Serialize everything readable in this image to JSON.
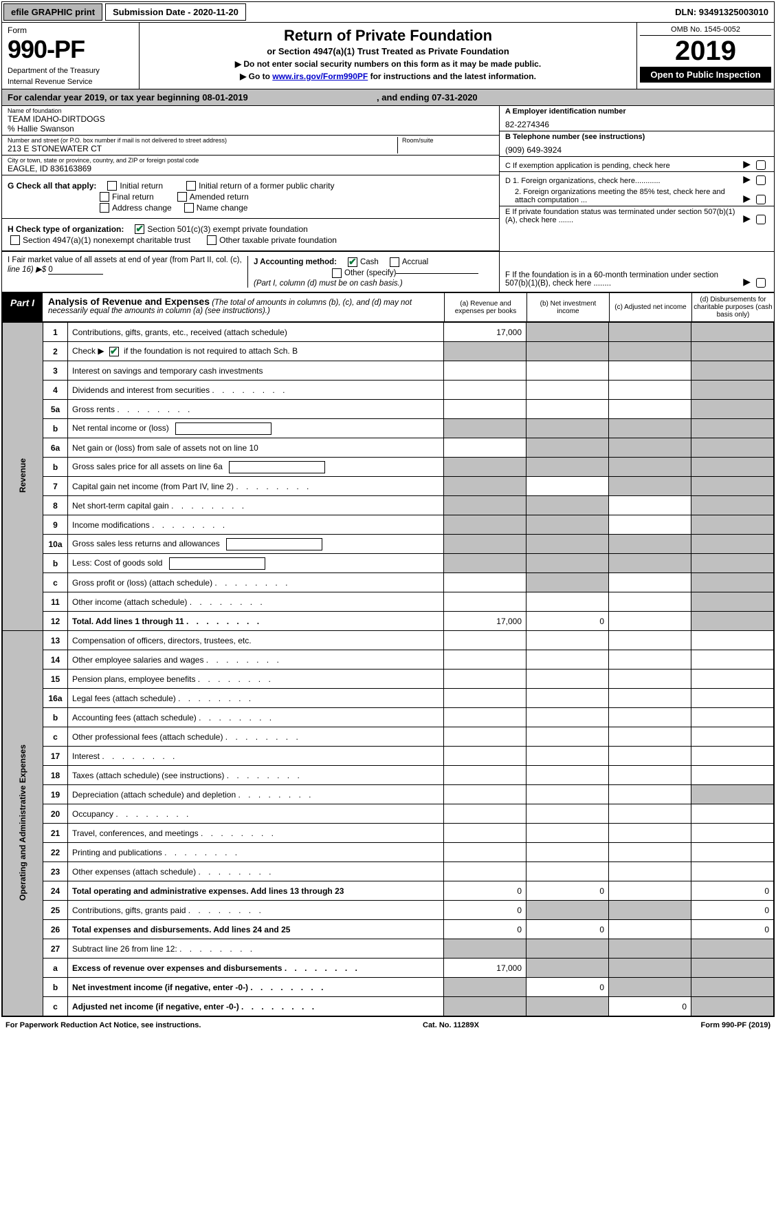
{
  "topbar": {
    "efile": "efile GRAPHIC print",
    "submission": "Submission Date - 2020-11-20",
    "dln": "DLN: 93491325003010"
  },
  "header": {
    "form_label": "Form",
    "form_number": "990-PF",
    "dept1": "Department of the Treasury",
    "dept2": "Internal Revenue Service",
    "title": "Return of Private Foundation",
    "subtitle": "or Section 4947(a)(1) Trust Treated as Private Foundation",
    "instr1": "▶ Do not enter social security numbers on this form as it may be made public.",
    "instr2": "▶ Go to ",
    "instr2_link": "www.irs.gov/Form990PF",
    "instr2_after": " for instructions and the latest information.",
    "omb": "OMB No. 1545-0052",
    "year": "2019",
    "open": "Open to Public Inspection"
  },
  "calendar": {
    "text_a": "For calendar year 2019, or tax year beginning ",
    "begin": "08-01-2019",
    "text_b": " , and ending ",
    "end": "07-31-2020"
  },
  "info": {
    "name_label": "Name of foundation",
    "name": "TEAM IDAHO-DIRTDOGS",
    "care_of": "% Hallie Swanson",
    "addr_label": "Number and street (or P.O. box number if mail is not delivered to street address)",
    "addr": "213 E STONEWATER CT",
    "room_label": "Room/suite",
    "city_label": "City or town, state or province, country, and ZIP or foreign postal code",
    "city": "EAGLE, ID  836163869",
    "ein_label": "A Employer identification number",
    "ein": "82-2274346",
    "phone_label": "B Telephone number (see instructions)",
    "phone": "(909) 649-3924",
    "c_label": "C If exemption application is pending, check here",
    "d1": "D 1. Foreign organizations, check here............",
    "d2": "2. Foreign organizations meeting the 85% test, check here and attach computation ...",
    "e_label": "E If private foundation status was terminated under section 507(b)(1)(A), check here .......",
    "f_label": "F If the foundation is in a 60-month termination under section 507(b)(1)(B), check here ........"
  },
  "g": {
    "label": "G Check all that apply:",
    "opts": [
      "Initial return",
      "Initial return of a former public charity",
      "Final return",
      "Amended return",
      "Address change",
      "Name change"
    ]
  },
  "h": {
    "label": "H Check type of organization:",
    "opt1": "Section 501(c)(3) exempt private foundation",
    "opt2": "Section 4947(a)(1) nonexempt charitable trust",
    "opt3": "Other taxable private foundation"
  },
  "i": {
    "label": "I Fair market value of all assets at end of year (from Part II, col. (c),",
    "line": "line 16) ▶$ ",
    "val": "0"
  },
  "j": {
    "label": "J Accounting method:",
    "opt1": "Cash",
    "opt2": "Accrual",
    "opt3": "Other (specify)",
    "note": "(Part I, column (d) must be on cash basis.)"
  },
  "part1": {
    "badge": "Part I",
    "title": "Analysis of Revenue and Expenses",
    "title_note": " (The total of amounts in columns (b), (c), and (d) may not necessarily equal the amounts in column (a) (see instructions).)",
    "col_a": "(a) Revenue and expenses per books",
    "col_b": "(b) Net investment income",
    "col_c": "(c) Adjusted net income",
    "col_d": "(d) Disbursements for charitable purposes (cash basis only)"
  },
  "side": {
    "revenue": "Revenue",
    "expenses": "Operating and Administrative Expenses"
  },
  "rows": [
    {
      "n": "1",
      "t": "Contributions, gifts, grants, etc., received (attach schedule)",
      "a": "17,000",
      "grey": [
        "b",
        "c",
        "d"
      ]
    },
    {
      "n": "2",
      "t": "Check ▶ ☑ if the foundation is not required to attach Sch. B",
      "nobox": true,
      "grey": [
        "a",
        "b",
        "c",
        "d"
      ]
    },
    {
      "n": "3",
      "t": "Interest on savings and temporary cash investments",
      "grey": [
        "d"
      ]
    },
    {
      "n": "4",
      "t": "Dividends and interest from securities",
      "grey": [
        "d"
      ]
    },
    {
      "n": "5a",
      "t": "Gross rents",
      "grey": [
        "d"
      ]
    },
    {
      "n": "b",
      "t": "Net rental income or (loss)",
      "innerbox": true,
      "grey": [
        "a",
        "b",
        "c",
        "d"
      ]
    },
    {
      "n": "6a",
      "t": "Net gain or (loss) from sale of assets not on line 10",
      "grey": [
        "b",
        "c",
        "d"
      ]
    },
    {
      "n": "b",
      "t": "Gross sales price for all assets on line 6a",
      "innerbox": true,
      "grey": [
        "a",
        "b",
        "c",
        "d"
      ]
    },
    {
      "n": "7",
      "t": "Capital gain net income (from Part IV, line 2)",
      "grey": [
        "a",
        "c",
        "d"
      ]
    },
    {
      "n": "8",
      "t": "Net short-term capital gain",
      "grey": [
        "a",
        "b",
        "d"
      ]
    },
    {
      "n": "9",
      "t": "Income modifications",
      "grey": [
        "a",
        "b",
        "d"
      ]
    },
    {
      "n": "10a",
      "t": "Gross sales less returns and allowances",
      "innerbox": true,
      "grey": [
        "a",
        "b",
        "c",
        "d"
      ]
    },
    {
      "n": "b",
      "t": "Less: Cost of goods sold",
      "innerbox": true,
      "grey": [
        "a",
        "b",
        "c",
        "d"
      ]
    },
    {
      "n": "c",
      "t": "Gross profit or (loss) (attach schedule)",
      "grey": [
        "b",
        "d"
      ]
    },
    {
      "n": "11",
      "t": "Other income (attach schedule)",
      "grey": [
        "d"
      ]
    },
    {
      "n": "12",
      "t": "Total. Add lines 1 through 11",
      "bold": true,
      "a": "17,000",
      "b": "0",
      "grey": [
        "d"
      ]
    }
  ],
  "exp_rows": [
    {
      "n": "13",
      "t": "Compensation of officers, directors, trustees, etc.",
      "grey": []
    },
    {
      "n": "14",
      "t": "Other employee salaries and wages",
      "grey": []
    },
    {
      "n": "15",
      "t": "Pension plans, employee benefits",
      "grey": []
    },
    {
      "n": "16a",
      "t": "Legal fees (attach schedule)",
      "grey": []
    },
    {
      "n": "b",
      "t": "Accounting fees (attach schedule)",
      "grey": []
    },
    {
      "n": "c",
      "t": "Other professional fees (attach schedule)",
      "grey": []
    },
    {
      "n": "17",
      "t": "Interest",
      "grey": []
    },
    {
      "n": "18",
      "t": "Taxes (attach schedule) (see instructions)",
      "grey": []
    },
    {
      "n": "19",
      "t": "Depreciation (attach schedule) and depletion",
      "grey": [
        "d"
      ]
    },
    {
      "n": "20",
      "t": "Occupancy",
      "grey": []
    },
    {
      "n": "21",
      "t": "Travel, conferences, and meetings",
      "grey": []
    },
    {
      "n": "22",
      "t": "Printing and publications",
      "grey": []
    },
    {
      "n": "23",
      "t": "Other expenses (attach schedule)",
      "grey": []
    },
    {
      "n": "24",
      "t": "Total operating and administrative expenses. Add lines 13 through 23",
      "bold": true,
      "a": "0",
      "b": "0",
      "d": "0",
      "grey": []
    },
    {
      "n": "25",
      "t": "Contributions, gifts, grants paid",
      "a": "0",
      "d": "0",
      "grey": [
        "b",
        "c"
      ]
    },
    {
      "n": "26",
      "t": "Total expenses and disbursements. Add lines 24 and 25",
      "bold": true,
      "a": "0",
      "b": "0",
      "d": "0",
      "grey": []
    },
    {
      "n": "27",
      "t": "Subtract line 26 from line 12:",
      "grey": [
        "a",
        "b",
        "c",
        "d"
      ],
      "noborder": true
    },
    {
      "n": "a",
      "t": "Excess of revenue over expenses and disbursements",
      "bold": true,
      "a": "17,000",
      "grey": [
        "b",
        "c",
        "d"
      ]
    },
    {
      "n": "b",
      "t": "Net investment income (if negative, enter -0-)",
      "bold": true,
      "b": "0",
      "grey": [
        "a",
        "c",
        "d"
      ]
    },
    {
      "n": "c",
      "t": "Adjusted net income (if negative, enter -0-)",
      "bold": true,
      "c": "0",
      "grey": [
        "a",
        "b",
        "d"
      ]
    }
  ],
  "footer": {
    "left": "For Paperwork Reduction Act Notice, see instructions.",
    "mid": "Cat. No. 11289X",
    "right": "Form 990-PF (2019)"
  },
  "colors": {
    "grey": "#c0c0c0",
    "check_green": "#0a7a3a",
    "link": "#0000cc"
  }
}
